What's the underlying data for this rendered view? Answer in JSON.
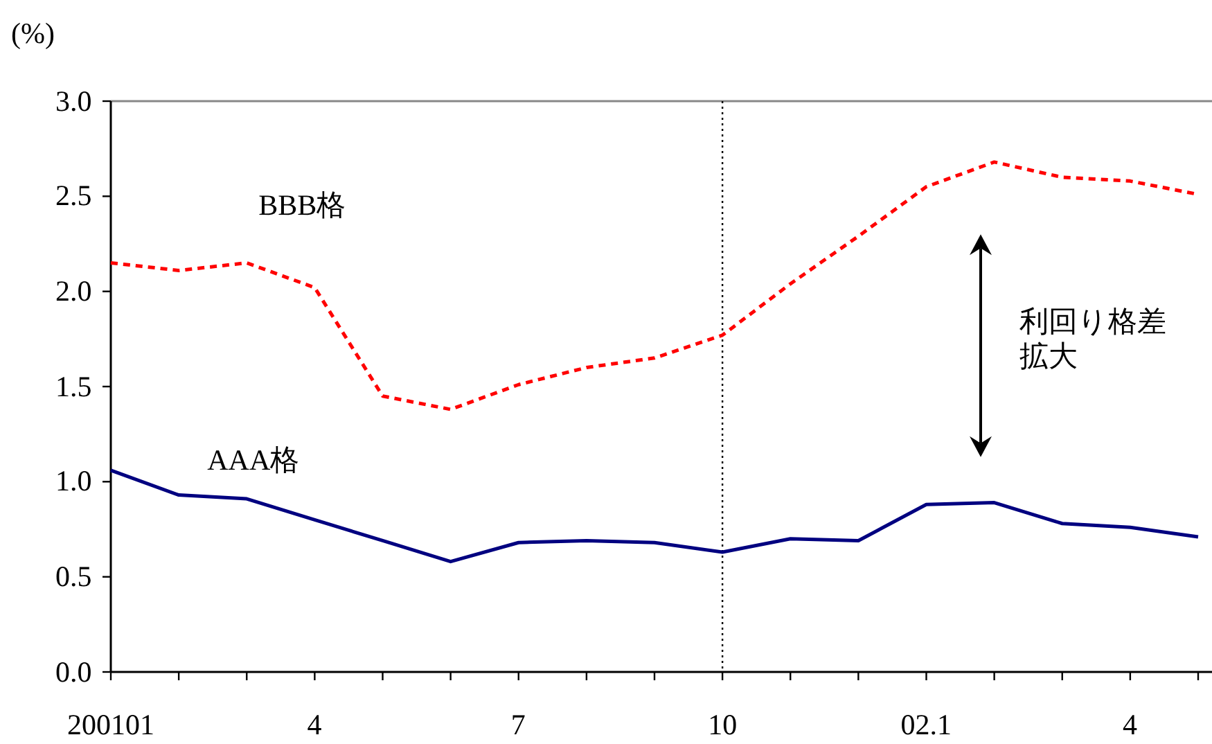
{
  "chart_data": {
    "type": "line",
    "ylabel": "(%)",
    "categories": [
      "200101",
      null,
      null,
      "4",
      null,
      null,
      "7",
      null,
      null,
      "10",
      null,
      null,
      "02.1",
      null,
      null,
      "4",
      null
    ],
    "series": [
      {
        "name": "BBB格",
        "color": "#ff0000",
        "line_style": "dashed",
        "values": [
          2.15,
          2.11,
          2.15,
          2.02,
          1.45,
          1.38,
          1.51,
          1.6,
          1.65,
          1.77,
          2.04,
          2.29,
          2.55,
          2.68,
          2.6,
          2.58,
          2.51
        ]
      },
      {
        "name": "AAA格",
        "color": "#000080",
        "line_style": "solid",
        "values": [
          1.06,
          0.93,
          0.91,
          0.8,
          0.69,
          0.58,
          0.68,
          0.69,
          0.68,
          0.63,
          0.7,
          0.69,
          0.88,
          0.89,
          0.78,
          0.76,
          0.71
        ]
      }
    ],
    "ylim": [
      0,
      3
    ],
    "yticks": [
      {
        "value": 0,
        "label": "0.0"
      },
      {
        "value": 0.5,
        "label": "0.5"
      },
      {
        "value": 1,
        "label": "1.0"
      },
      {
        "value": 1.5,
        "label": "1.5"
      },
      {
        "value": 2,
        "label": "2.0"
      },
      {
        "value": 2.5,
        "label": "2.5"
      },
      {
        "value": 3,
        "label": "3.0"
      }
    ],
    "grid": false,
    "marker": "none",
    "ref_lines": [
      {
        "axis": "x",
        "value": "10",
        "line_style": "dotted",
        "color": "#000000"
      }
    ],
    "annotations": [
      "利回り格差拡大"
    ]
  }
}
